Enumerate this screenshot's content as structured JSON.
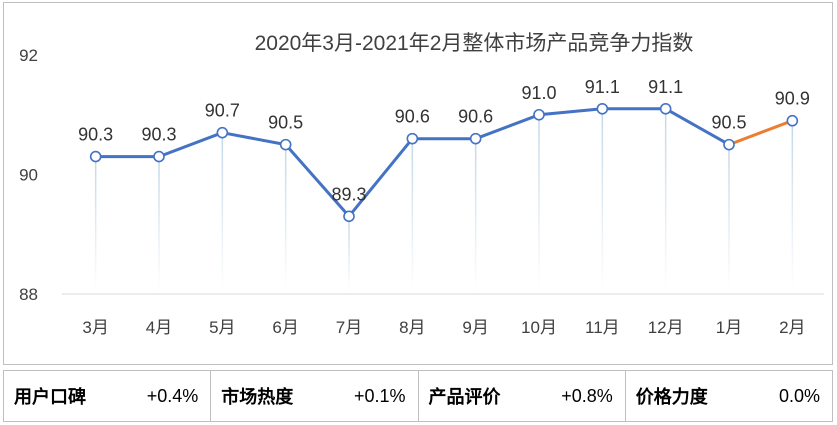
{
  "chart_data": {
    "type": "line",
    "title": "2020年3月-2021年2月整体市场产品竞争力指数",
    "categories": [
      "3月",
      "4月",
      "5月",
      "6月",
      "7月",
      "8月",
      "9月",
      "10月",
      "11月",
      "12月",
      "1月",
      "2月"
    ],
    "values": [
      90.3,
      90.3,
      90.7,
      90.5,
      89.3,
      90.6,
      90.6,
      91.0,
      91.1,
      91.1,
      90.5,
      90.9
    ],
    "data_labels": [
      "90.3",
      "90.3",
      "90.7",
      "90.5",
      "89.3",
      "90.6",
      "90.6",
      "91.0",
      "91.1",
      "91.1",
      "90.5",
      "90.9"
    ],
    "ylim": [
      88,
      92
    ],
    "yticks": [
      "88",
      "90",
      "92"
    ],
    "xlabel": "",
    "ylabel": "",
    "grid": false,
    "legend": "none",
    "colors": {
      "line": "#4472c4",
      "last_segment": "#ed7d31",
      "drop_line": "#c9dcea",
      "axis": "#d9d9d9"
    }
  },
  "metrics": [
    {
      "label": "用户口碑",
      "value": "+0.4%"
    },
    {
      "label": "市场热度",
      "value": "+0.1%"
    },
    {
      "label": "产品评价",
      "value": "+0.8%"
    },
    {
      "label": "价格力度",
      "value": "0.0%"
    }
  ]
}
